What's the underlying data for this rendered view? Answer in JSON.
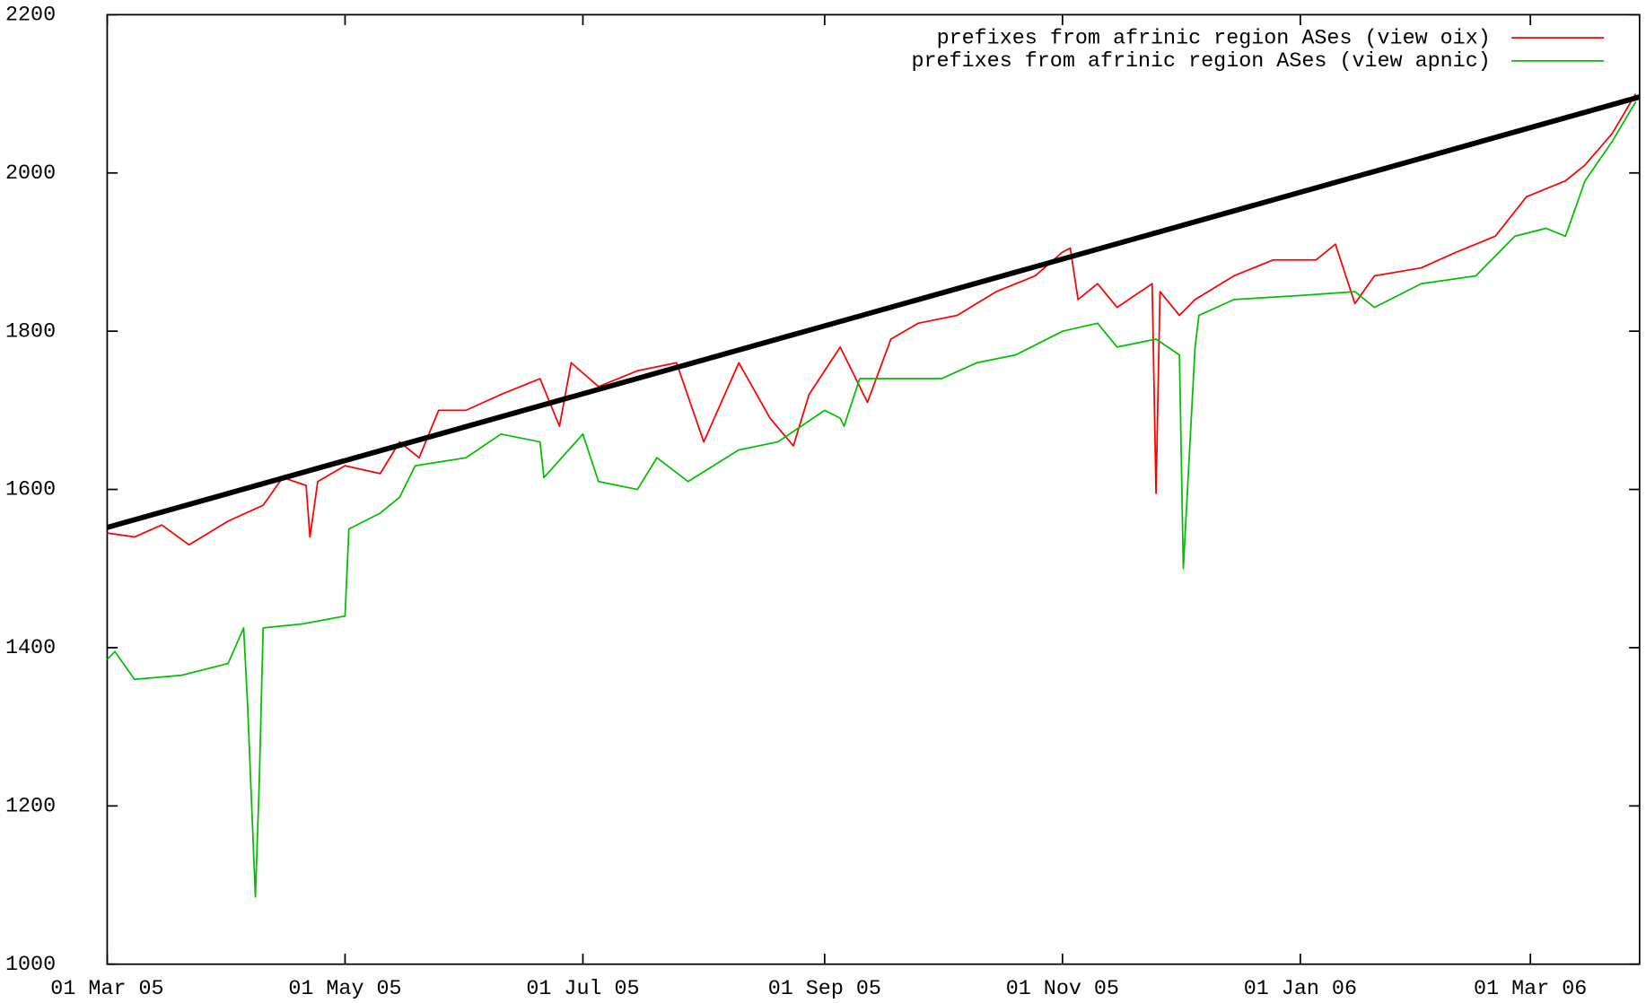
{
  "chart_data": {
    "type": "line",
    "series": [
      {
        "name": "prefixes from afrinic region ASes (view oix)",
        "color": "#ff0000",
        "x": [
          "2005-03-01",
          "2005-03-08",
          "2005-03-15",
          "2005-03-22",
          "2005-04-01",
          "2005-04-10",
          "2005-04-15",
          "2005-04-21",
          "2005-04-22",
          "2005-04-24",
          "2005-05-01",
          "2005-05-10",
          "2005-05-15",
          "2005-05-20",
          "2005-05-25",
          "2005-06-01",
          "2005-06-10",
          "2005-06-20",
          "2005-06-25",
          "2005-06-28",
          "2005-07-05",
          "2005-07-15",
          "2005-07-25",
          "2005-08-01",
          "2005-08-10",
          "2005-08-18",
          "2005-08-24",
          "2005-08-28",
          "2005-09-05",
          "2005-09-12",
          "2005-09-18",
          "2005-09-25",
          "2005-10-05",
          "2005-10-15",
          "2005-10-25",
          "2005-11-01",
          "2005-11-03",
          "2005-11-05",
          "2005-11-10",
          "2005-11-15",
          "2005-11-24",
          "2005-11-25",
          "2005-11-26",
          "2005-12-01",
          "2005-12-05",
          "2005-12-15",
          "2005-12-25",
          "2006-01-05",
          "2006-01-10",
          "2006-01-15",
          "2006-01-20",
          "2006-02-01",
          "2006-02-10",
          "2006-02-20",
          "2006-02-28",
          "2006-03-05",
          "2006-03-10",
          "2006-03-15",
          "2006-03-22",
          "2006-03-28"
        ],
        "values": [
          1545,
          1540,
          1555,
          1530,
          1560,
          1580,
          1615,
          1605,
          1540,
          1610,
          1630,
          1620,
          1660,
          1640,
          1700,
          1700,
          1720,
          1740,
          1680,
          1760,
          1730,
          1750,
          1760,
          1660,
          1760,
          1690,
          1655,
          1720,
          1780,
          1710,
          1790,
          1810,
          1820,
          1850,
          1870,
          1900,
          1905,
          1840,
          1860,
          1830,
          1860,
          1595,
          1850,
          1820,
          1840,
          1870,
          1890,
          1890,
          1910,
          1835,
          1870,
          1880,
          1900,
          1920,
          1970,
          1980,
          1990,
          2010,
          2050,
          2100
        ]
      },
      {
        "name": "prefixes from afrinic region ASes (view apnic)",
        "color": "#00c000",
        "x": [
          "2005-03-01",
          "2005-03-03",
          "2005-03-08",
          "2005-03-20",
          "2005-04-01",
          "2005-04-05",
          "2005-04-06",
          "2005-04-08",
          "2005-04-09",
          "2005-04-10",
          "2005-04-20",
          "2005-05-01",
          "2005-05-02",
          "2005-05-10",
          "2005-05-15",
          "2005-05-19",
          "2005-06-01",
          "2005-06-10",
          "2005-06-20",
          "2005-06-21",
          "2005-07-01",
          "2005-07-05",
          "2005-07-15",
          "2005-07-20",
          "2005-07-28",
          "2005-08-10",
          "2005-08-20",
          "2005-09-01",
          "2005-09-05",
          "2005-09-06",
          "2005-09-10",
          "2005-09-20",
          "2005-10-01",
          "2005-10-10",
          "2005-10-20",
          "2005-11-01",
          "2005-11-10",
          "2005-11-15",
          "2005-11-25",
          "2005-12-01",
          "2005-12-02",
          "2005-12-05",
          "2005-12-06",
          "2005-12-15",
          "2006-01-01",
          "2006-01-15",
          "2006-01-20",
          "2006-02-01",
          "2006-02-15",
          "2006-02-25",
          "2006-03-05",
          "2006-03-10",
          "2006-03-15",
          "2006-03-22",
          "2006-03-28"
        ],
        "values": [
          1385,
          1395,
          1360,
          1365,
          1380,
          1425,
          1330,
          1085,
          1230,
          1425,
          1430,
          1440,
          1550,
          1570,
          1590,
          1630,
          1640,
          1670,
          1660,
          1615,
          1670,
          1610,
          1600,
          1640,
          1610,
          1650,
          1660,
          1700,
          1690,
          1680,
          1740,
          1740,
          1740,
          1760,
          1770,
          1800,
          1810,
          1780,
          1790,
          1770,
          1500,
          1780,
          1820,
          1840,
          1845,
          1850,
          1830,
          1860,
          1870,
          1920,
          1930,
          1920,
          1990,
          2040,
          2090
        ]
      }
    ],
    "trend_line": {
      "color": "#000000",
      "x": [
        "2005-03-01",
        "2006-03-29"
      ],
      "values": [
        1552,
        2096
      ]
    },
    "xlim": [
      "2005-03-01",
      "2006-03-29"
    ],
    "xticks": [
      {
        "value": "2005-03-01",
        "label": "01 Mar 05"
      },
      {
        "value": "2005-05-01",
        "label": "01 May 05"
      },
      {
        "value": "2005-07-01",
        "label": "01 Jul 05"
      },
      {
        "value": "2005-09-01",
        "label": "01 Sep 05"
      },
      {
        "value": "2005-11-01",
        "label": "01 Nov 05"
      },
      {
        "value": "2006-01-01",
        "label": "01 Jan 06"
      },
      {
        "value": "2006-03-01",
        "label": "01 Mar 06"
      }
    ],
    "ylim": [
      1000,
      2200
    ],
    "yticks": [
      1000,
      1200,
      1400,
      1600,
      1800,
      2000,
      2200
    ],
    "legend": "top-right"
  }
}
